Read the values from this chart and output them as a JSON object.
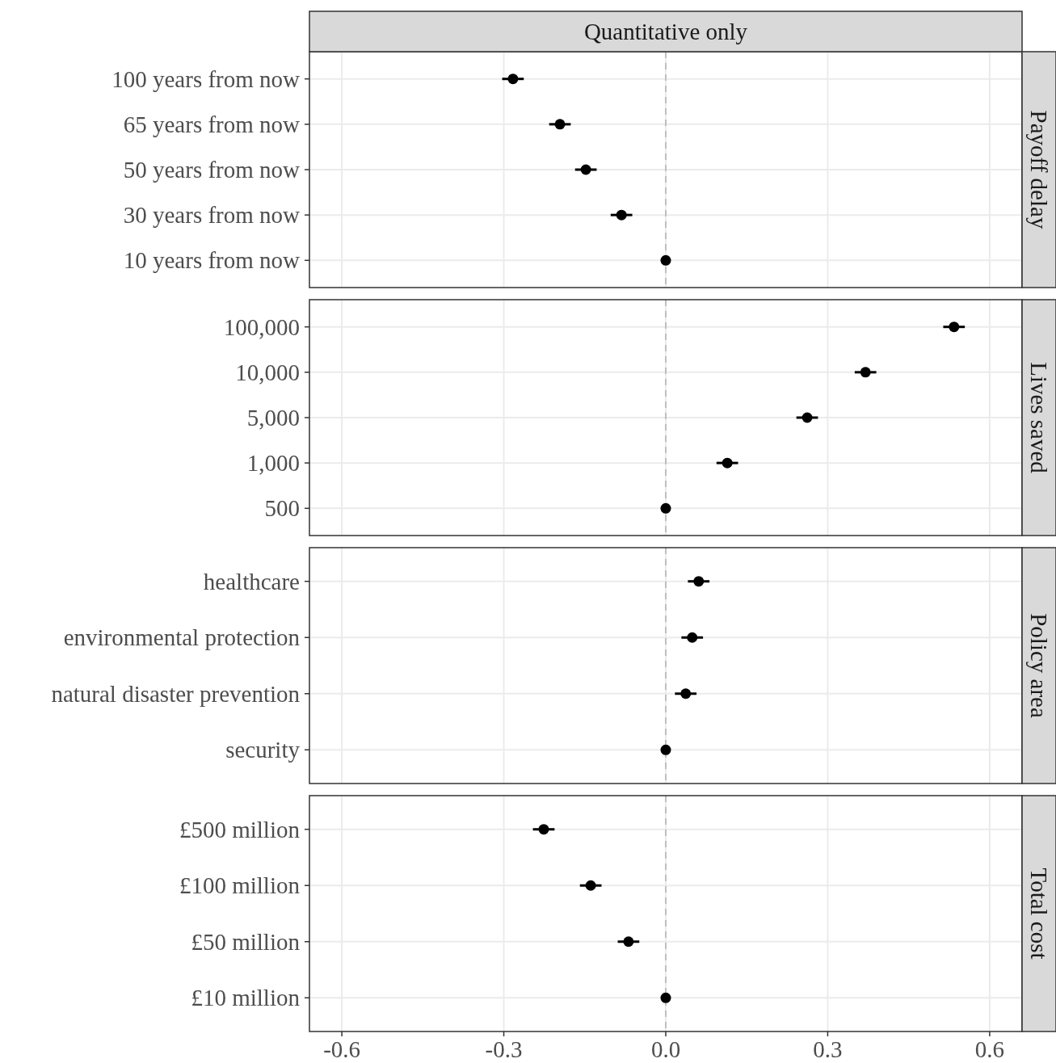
{
  "chart_data": [
    {
      "type": "scatter",
      "title": "Quantitative only",
      "y2label": "Payoff delay",
      "orientation": "horizontal",
      "categories": [
        "100 years from now",
        "65 years from now",
        "50 years from now",
        "30 years from now",
        "10 years from now"
      ],
      "series": [
        {
          "color": "#000000",
          "values": [
            -0.283,
            -0.196,
            -0.148,
            -0.082,
            0
          ],
          "errors": [
            0.02,
            0.02,
            0.02,
            0.02,
            null
          ]
        }
      ],
      "xlim": [
        -0.66,
        0.66
      ],
      "xticks": [
        -0.6,
        -0.3,
        0,
        0.3,
        0.6
      ],
      "tick_labels": "y",
      "grid": true,
      "marker": "circle",
      "ref_lines": [
        {
          "axis": "x",
          "value": 0,
          "color": "#bfbfbf",
          "line_style": "dashed"
        }
      ]
    },
    {
      "type": "scatter",
      "y2label": "Lives saved",
      "orientation": "horizontal",
      "categories": [
        "100,000",
        "10,000",
        "5,000",
        "1,000",
        "500"
      ],
      "series": [
        {
          "color": "#000000",
          "values": [
            0.534,
            0.37,
            0.262,
            0.114,
            0
          ],
          "errors": [
            0.02,
            0.02,
            0.02,
            0.02,
            null
          ]
        }
      ],
      "xlim": [
        -0.66,
        0.66
      ],
      "xticks": [
        -0.6,
        -0.3,
        0,
        0.3,
        0.6
      ],
      "tick_labels": "y",
      "grid": true,
      "marker": "circle",
      "ref_lines": [
        {
          "axis": "x",
          "value": 0,
          "color": "#bfbfbf",
          "line_style": "dashed"
        }
      ]
    },
    {
      "type": "scatter",
      "y2label": "Policy area",
      "orientation": "horizontal",
      "categories": [
        "healthcare",
        "environmental protection",
        "natural disaster prevention",
        "security"
      ],
      "series": [
        {
          "color": "#000000",
          "values": [
            0.061,
            0.049,
            0.037,
            0
          ],
          "errors": [
            0.02,
            0.02,
            0.02,
            null
          ]
        }
      ],
      "xlim": [
        -0.66,
        0.66
      ],
      "xticks": [
        -0.6,
        -0.3,
        0,
        0.3,
        0.6
      ],
      "tick_labels": "y",
      "grid": true,
      "marker": "circle",
      "ref_lines": [
        {
          "axis": "x",
          "value": 0,
          "color": "#bfbfbf",
          "line_style": "dashed"
        }
      ]
    },
    {
      "type": "scatter",
      "y2label": "Total cost",
      "orientation": "horizontal",
      "categories": [
        "£500 million",
        "£100 million",
        "£50 million",
        "£10 million"
      ],
      "series": [
        {
          "color": "#000000",
          "values": [
            -0.226,
            -0.139,
            -0.069,
            0
          ],
          "errors": [
            0.02,
            0.02,
            0.02,
            null
          ]
        }
      ],
      "xlim": [
        -0.66,
        0.66
      ],
      "xticks": [
        {
          "value": -0.6,
          "label": "-0.6"
        },
        {
          "value": -0.3,
          "label": "-0.3"
        },
        {
          "value": 0,
          "label": "0.0"
        },
        {
          "value": 0.3,
          "label": "0.3"
        },
        {
          "value": 0.6,
          "label": "0.6"
        }
      ],
      "grid": true,
      "marker": "circle",
      "ref_lines": [
        {
          "axis": "x",
          "value": 0,
          "color": "#bfbfbf",
          "line_style": "dashed"
        }
      ]
    }
  ]
}
